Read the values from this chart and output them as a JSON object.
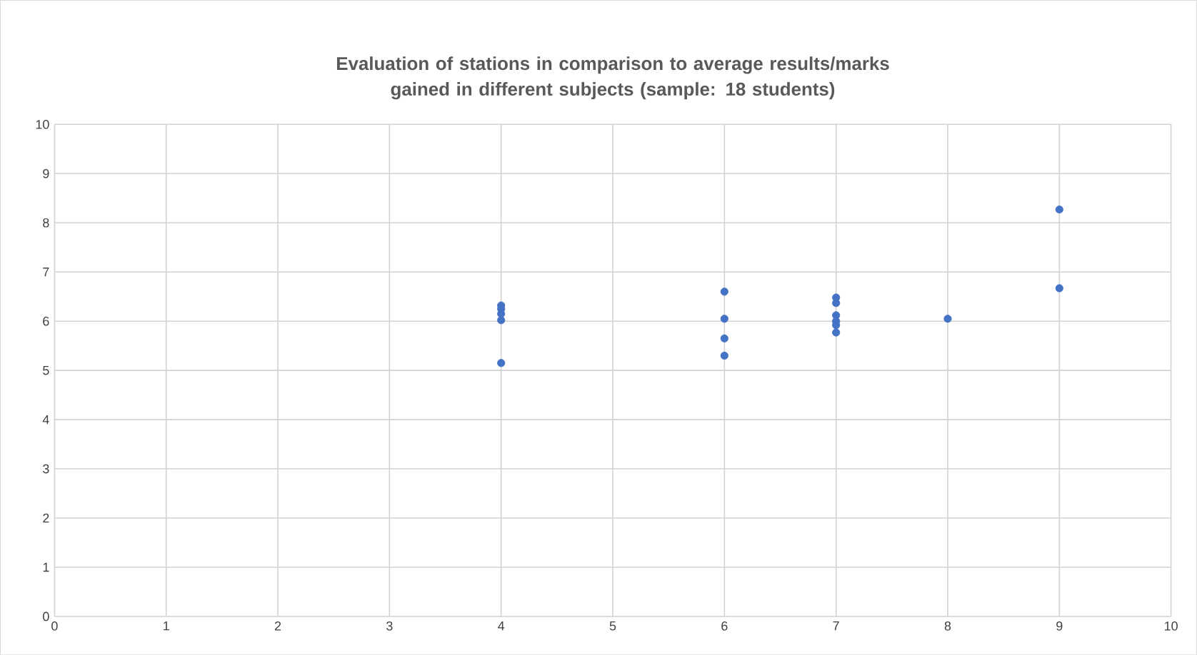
{
  "chart_data": {
    "type": "scatter",
    "title": "Evaluation of stations in comparison to average results/marks gained in different subjects (sample: 18 students)",
    "x": [
      4,
      4,
      4,
      4,
      4,
      6,
      6,
      6,
      6,
      7,
      7,
      7,
      7,
      7,
      7,
      8,
      9,
      9
    ],
    "values": [
      6.32,
      6.25,
      6.15,
      6.02,
      5.15,
      6.6,
      6.05,
      5.65,
      5.3,
      6.48,
      6.37,
      6.12,
      6.0,
      5.92,
      5.77,
      6.05,
      8.27,
      6.67
    ],
    "color": "#4472c4",
    "marker": "circle",
    "grid": true,
    "xlim": [
      0,
      10
    ],
    "xticks": [
      0,
      1,
      2,
      3,
      4,
      5,
      6,
      7,
      8,
      9,
      10
    ],
    "ylim": [
      0,
      10
    ],
    "yticks": [
      0,
      1,
      2,
      3,
      4,
      5,
      6,
      7,
      8,
      9,
      10
    ]
  }
}
